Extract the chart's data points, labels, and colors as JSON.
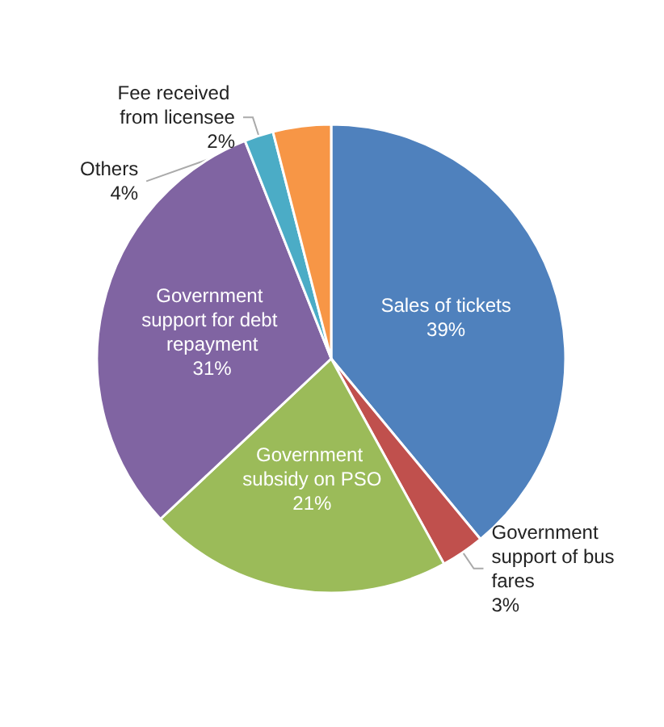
{
  "chart_data": {
    "type": "pie",
    "categories": [
      "Sales of tickets",
      "Government support of bus fares",
      "Government subsidy on PSO",
      "Government support for debt repayment",
      "Fee received from licensee",
      "Others"
    ],
    "values": [
      39,
      3,
      21,
      31,
      2,
      4
    ],
    "value_labels": [
      "39%",
      "3%",
      "21%",
      "31%",
      "2%",
      "4%"
    ],
    "colors": [
      "#4f81bd",
      "#c0504d",
      "#9bbb59",
      "#8064a2",
      "#4bacc6",
      "#f79646"
    ]
  }
}
